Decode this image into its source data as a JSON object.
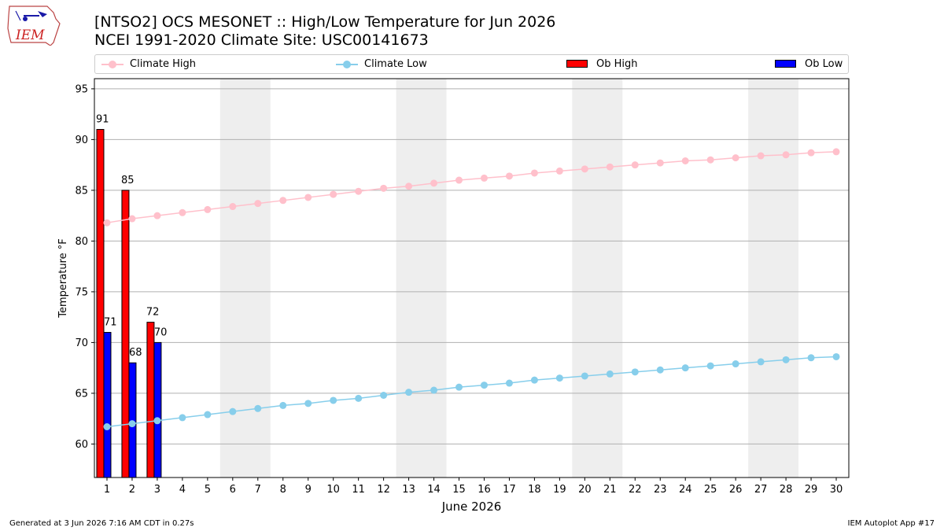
{
  "header": {
    "title_line1": "[NTSO2] OCS MESONET :: High/Low Temperature for Jun 2026",
    "title_line2": "NCEI 1991-2020 Climate Site: USC00141673",
    "logo_text": "IEM"
  },
  "legend": {
    "climate_high": "Climate High",
    "climate_low": "Climate Low",
    "ob_high": "Ob High",
    "ob_low": "Ob Low"
  },
  "colors": {
    "climate_high": "#ffc0cb",
    "climate_low": "#87ceeb",
    "ob_high": "#ff0000",
    "ob_low": "#0000ff",
    "weekend_band": "#eeeeee",
    "grid": "#b0b0b0"
  },
  "chart_data": {
    "type": "bar",
    "xlabel": "June 2026",
    "ylabel": "Temperature °F",
    "xlim": [
      0.5,
      30.5
    ],
    "ylim": [
      56.7,
      96
    ],
    "yticks": [
      60,
      65,
      70,
      75,
      80,
      85,
      90,
      95
    ],
    "x": [
      1,
      2,
      3,
      4,
      5,
      6,
      7,
      8,
      9,
      10,
      11,
      12,
      13,
      14,
      15,
      16,
      17,
      18,
      19,
      20,
      21,
      22,
      23,
      24,
      25,
      26,
      27,
      28,
      29,
      30
    ],
    "weekend_bands": [
      [
        6,
        7
      ],
      [
        13,
        14
      ],
      [
        20,
        21
      ],
      [
        27,
        28
      ]
    ],
    "grid": "y",
    "legend_position": "top",
    "series": [
      {
        "name": "Climate High",
        "kind": "line",
        "values": [
          81.8,
          82.2,
          82.5,
          82.8,
          83.1,
          83.4,
          83.7,
          84.0,
          84.3,
          84.6,
          84.9,
          85.2,
          85.4,
          85.7,
          86.0,
          86.2,
          86.4,
          86.7,
          86.9,
          87.1,
          87.3,
          87.5,
          87.7,
          87.9,
          88.0,
          88.2,
          88.4,
          88.5,
          88.7,
          88.8
        ]
      },
      {
        "name": "Climate Low",
        "kind": "line",
        "values": [
          61.7,
          62.0,
          62.3,
          62.6,
          62.9,
          63.2,
          63.5,
          63.8,
          64.0,
          64.3,
          64.5,
          64.8,
          65.1,
          65.3,
          65.6,
          65.8,
          66.0,
          66.3,
          66.5,
          66.7,
          66.9,
          67.1,
          67.3,
          67.5,
          67.7,
          67.9,
          68.1,
          68.3,
          68.5,
          68.6
        ]
      },
      {
        "name": "Ob High",
        "kind": "bar",
        "x": [
          1,
          2,
          3
        ],
        "values": [
          91,
          85,
          72
        ],
        "labels": [
          "91",
          "85",
          "72"
        ]
      },
      {
        "name": "Ob Low",
        "kind": "bar",
        "x": [
          1,
          2,
          3
        ],
        "values": [
          71,
          68,
          70
        ],
        "labels": [
          "71",
          "68",
          "70"
        ]
      }
    ]
  },
  "footer": {
    "generated": "Generated at 3 Jun 2026 7:16 AM CDT in 0.27s",
    "app": "IEM Autoplot App #17"
  }
}
